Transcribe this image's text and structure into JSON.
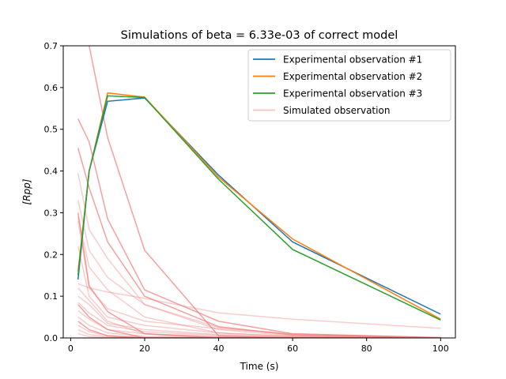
{
  "chart_data": {
    "type": "line",
    "title": "Simulations of beta = 6.33e-03 of correct model",
    "xlabel": "Time (s)",
    "ylabel": "[Rpp]",
    "xlim": [
      -2,
      104
    ],
    "ylim": [
      0,
      0.7
    ],
    "xticks": [
      0,
      20,
      40,
      60,
      80,
      100
    ],
    "yticks": [
      0.0,
      0.1,
      0.2,
      0.3,
      0.4,
      0.5,
      0.6,
      0.7
    ],
    "xtick_labels": [
      "0",
      "20",
      "40",
      "60",
      "80",
      "100"
    ],
    "ytick_labels": [
      "0.0",
      "0.1",
      "0.2",
      "0.3",
      "0.4",
      "0.5",
      "0.6",
      "0.7"
    ],
    "grid": false,
    "legend_position": "top-right",
    "x": [
      2,
      5,
      10,
      20,
      40,
      60,
      100
    ],
    "series": [
      {
        "name": "Experimental observation #1",
        "color": "#1f77b4",
        "values": [
          0.14,
          0.4,
          0.567,
          0.575,
          0.39,
          0.23,
          0.057
        ]
      },
      {
        "name": "Experimental observation #2",
        "color": "#ff7f0e",
        "values": [
          0.16,
          0.4,
          0.587,
          0.577,
          0.385,
          0.237,
          0.045
        ]
      },
      {
        "name": "Experimental observation #3",
        "color": "#2ca02c",
        "values": [
          0.15,
          0.4,
          0.58,
          0.576,
          0.38,
          0.212,
          0.043
        ]
      }
    ],
    "simulated": {
      "name": "Simulated observation",
      "color": "#f08080",
      "lines": [
        {
          "values": [
            0.525,
            0.47,
            0.285,
            0.115,
            0.04,
            0.01,
            0.001
          ],
          "opacity": 0.75
        },
        {
          "values": [
            0.455,
            0.36,
            0.23,
            0.1,
            0.027,
            0.007,
            0.0
          ],
          "opacity": 0.75
        },
        {
          "values": [
            0.78,
            0.7,
            0.48,
            0.21,
            0.005,
            0.0,
            0.0
          ],
          "opacity": 0.75
        },
        {
          "values": [
            0.3,
            0.125,
            0.063,
            0.01,
            0.0,
            0.0,
            0.0
          ],
          "opacity": 0.75
        },
        {
          "values": [
            0.08,
            0.05,
            0.02,
            0.0,
            0.0,
            0.0,
            0.0
          ],
          "opacity": 0.75
        },
        {
          "values": [
            0.04,
            0.02,
            0.005,
            0.0,
            0.0,
            0.0,
            0.0
          ],
          "opacity": 0.75
        },
        {
          "values": [
            0.395,
            0.26,
            0.19,
            0.08,
            0.025,
            0.008,
            0.001
          ],
          "opacity": 0.4
        },
        {
          "values": [
            0.33,
            0.21,
            0.145,
            0.08,
            0.02,
            0.005,
            0.0
          ],
          "opacity": 0.4
        },
        {
          "values": [
            0.29,
            0.17,
            0.115,
            0.05,
            0.012,
            0.003,
            0.0
          ],
          "opacity": 0.4
        },
        {
          "values": [
            0.13,
            0.12,
            0.11,
            0.095,
            0.06,
            0.045,
            0.023
          ],
          "opacity": 0.4
        },
        {
          "values": [
            0.28,
            0.12,
            0.07,
            0.04,
            0.022,
            0.01,
            0.0
          ],
          "opacity": 0.4
        },
        {
          "values": [
            0.22,
            0.1,
            0.05,
            0.03,
            0.012,
            0.004,
            0.0
          ],
          "opacity": 0.4
        },
        {
          "values": [
            0.12,
            0.09,
            0.04,
            0.01,
            0.002,
            0.0,
            0.0
          ],
          "opacity": 0.4
        },
        {
          "values": [
            0.1,
            0.08,
            0.035,
            0.02,
            0.008,
            0.002,
            0.0
          ],
          "opacity": 0.4
        },
        {
          "values": [
            0.085,
            0.06,
            0.03,
            0.015,
            0.006,
            0.001,
            0.0
          ],
          "opacity": 0.4
        },
        {
          "values": [
            0.065,
            0.045,
            0.02,
            0.01,
            0.003,
            0.0,
            0.0
          ],
          "opacity": 0.4
        },
        {
          "values": [
            0.05,
            0.03,
            0.012,
            0.004,
            0.001,
            0.0,
            0.0
          ],
          "opacity": 0.4
        },
        {
          "values": [
            0.03,
            0.015,
            0.006,
            0.002,
            0.0,
            0.0,
            0.0
          ],
          "opacity": 0.4
        },
        {
          "values": [
            0.02,
            0.008,
            0.003,
            0.0,
            0.0,
            0.0,
            0.0
          ],
          "opacity": 0.4
        },
        {
          "values": [
            0.01,
            0.003,
            0.001,
            0.0,
            0.0,
            0.0,
            0.0
          ],
          "opacity": 0.4
        }
      ]
    }
  }
}
